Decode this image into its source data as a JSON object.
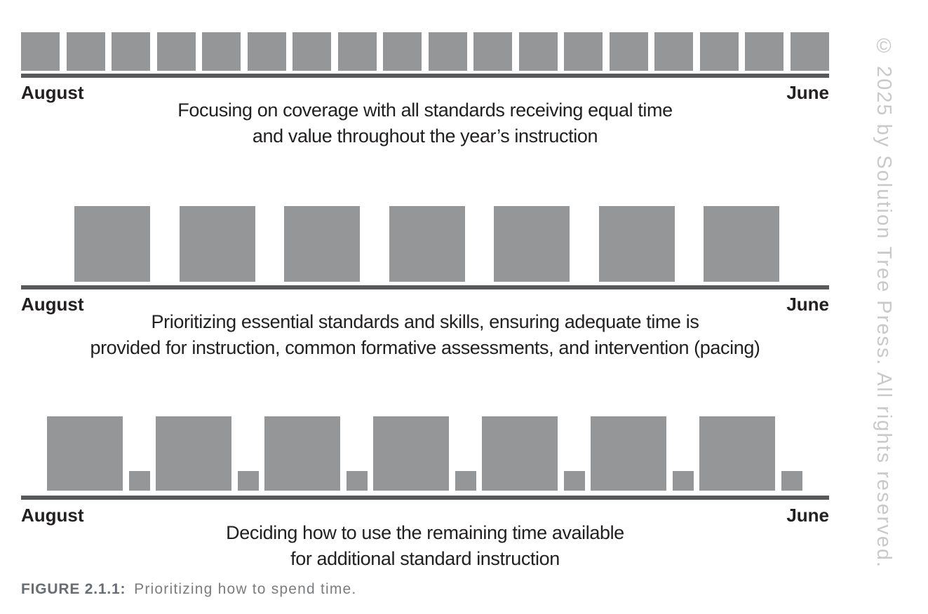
{
  "figure": {
    "label": "FIGURE 2.1.1:",
    "caption": "Prioritizing how to spend time."
  },
  "watermark": "© 2025 by Solution Tree Press. All rights reserved.",
  "colors": {
    "block": "#949698",
    "line": "#58595b",
    "text": "#232022",
    "figure_label": "#676d72",
    "figure_caption": "#7b7c7e",
    "watermark": "#c9c9c9"
  },
  "timelines": [
    {
      "start_label": "August",
      "end_label": "June",
      "description_line1": "Focusing on coverage with all standards receiving equal time",
      "description_line2": "and value throughout the year’s instruction",
      "blocks": {
        "type": "uniform",
        "count": 18
      }
    },
    {
      "start_label": "August",
      "end_label": "June",
      "description_line1": "Prioritizing essential standards and skills, ensuring adequate time is",
      "description_line2": "provided for instruction, common formative assessments, and intervention (pacing)",
      "blocks": {
        "type": "paired_large_small",
        "count": 7
      }
    },
    {
      "start_label": "August",
      "end_label": "June",
      "description_line1": "Deciding how to use the remaining time available",
      "description_line2": "for additional standard instruction",
      "blocks": {
        "type": "paired_large_small",
        "count": 7
      }
    }
  ]
}
